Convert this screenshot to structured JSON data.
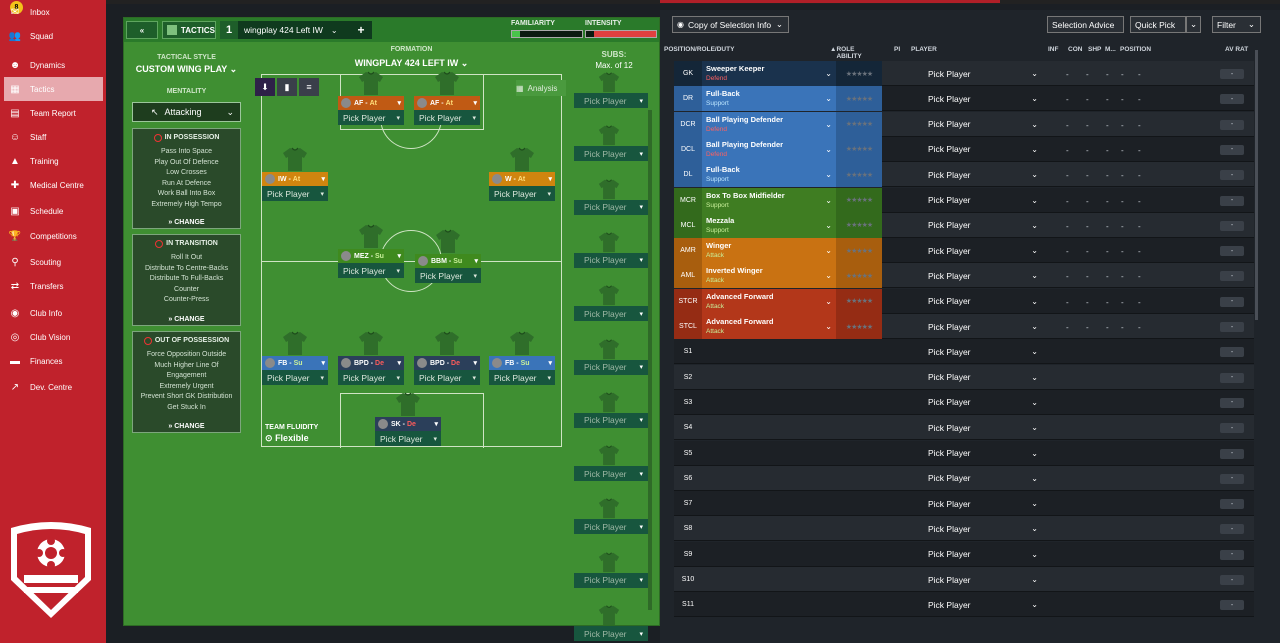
{
  "sidebar": {
    "inbox_badge": "8",
    "items": [
      {
        "label": "Inbox",
        "icon": "inbox-icon",
        "glyph": "✉"
      },
      {
        "label": "Squad",
        "icon": "squad-icon",
        "glyph": "👥"
      },
      {
        "label": "Dynamics",
        "icon": "dynamics-icon",
        "glyph": "☻"
      },
      {
        "label": "Tactics",
        "icon": "tactics-icon",
        "glyph": "▦"
      },
      {
        "label": "Team Report",
        "icon": "team-report-icon",
        "glyph": "▤"
      },
      {
        "label": "Staff",
        "icon": "staff-icon",
        "glyph": "☺"
      },
      {
        "label": "Training",
        "icon": "training-icon",
        "glyph": "▲"
      },
      {
        "label": "Medical Centre",
        "icon": "medical-icon",
        "glyph": "✚"
      },
      {
        "label": "Schedule",
        "icon": "schedule-icon",
        "glyph": "▣"
      },
      {
        "label": "Competitions",
        "icon": "trophy-icon",
        "glyph": "🏆"
      },
      {
        "label": "Scouting",
        "icon": "scouting-icon",
        "glyph": "⚲"
      },
      {
        "label": "Transfers",
        "icon": "transfers-icon",
        "glyph": "⇄"
      },
      {
        "label": "Club Info",
        "icon": "club-info-icon",
        "glyph": "◉"
      },
      {
        "label": "Club Vision",
        "icon": "club-vision-icon",
        "glyph": "◎"
      },
      {
        "label": "Finances",
        "icon": "finances-icon",
        "glyph": "▬"
      },
      {
        "label": "Dev. Centre",
        "icon": "dev-centre-icon",
        "glyph": "↗"
      }
    ]
  },
  "header": {
    "back": "«",
    "tactics_label": "TACTICS",
    "slot_number": "1",
    "formation_name": "wingplay 424  Left IW",
    "add": "+",
    "familiarity": "FAMILIARITY",
    "intensity": "INTENSITY"
  },
  "left": {
    "style_label": "TACTICAL STYLE",
    "style_value": "CUSTOM WING PLAY",
    "mentality_label": "MENTALITY",
    "mentality_value": "Attacking",
    "in_possession": {
      "title": "IN POSSESSION",
      "items": [
        "Pass Into Space",
        "Play Out Of Defence",
        "Low Crosses",
        "Run At Defence",
        "Work Ball Into Box",
        "Extremely High Tempo"
      ],
      "change": "CHANGE"
    },
    "in_transition": {
      "title": "IN TRANSITION",
      "items": [
        "Roll It Out",
        "Distribute To Centre-Backs",
        "Distribute To Full-Backs",
        "Counter",
        "Counter-Press"
      ],
      "change": "CHANGE"
    },
    "out_possession": {
      "title": "OUT OF POSSESSION",
      "items": [
        "Force Opposition Outside",
        "Much Higher Line Of",
        "Engagement",
        "Extremely Urgent",
        "Prevent Short GK Distribution",
        "Get Stuck In"
      ],
      "change": "CHANGE"
    }
  },
  "formation": {
    "label": "FORMATION",
    "name": "WINGPLAY 424  LEFT IW",
    "analysis": "Analysis",
    "team_fluidity_label": "TEAM FLUIDITY",
    "team_fluidity_value": "Flexible"
  },
  "cards": [
    {
      "role": "AF",
      "duty": "At",
      "pick": "Pick Player"
    },
    {
      "role": "AF",
      "duty": "At",
      "pick": "Pick Player"
    },
    {
      "role": "IW",
      "duty": "At",
      "pick": "Pick Player"
    },
    {
      "role": "W",
      "duty": "At",
      "pick": "Pick Player"
    },
    {
      "role": "MEZ",
      "duty": "Su",
      "pick": "Pick Player"
    },
    {
      "role": "BBM",
      "duty": "Su",
      "pick": "Pick Player"
    },
    {
      "role": "FB",
      "duty": "Su",
      "pick": "Pick Player"
    },
    {
      "role": "BPD",
      "duty": "De",
      "pick": "Pick Player"
    },
    {
      "role": "BPD",
      "duty": "De",
      "pick": "Pick Player"
    },
    {
      "role": "FB",
      "duty": "Su",
      "pick": "Pick Player"
    },
    {
      "role": "SK",
      "duty": "De",
      "pick": "Pick Player"
    }
  ],
  "subs": {
    "label": "SUBS:",
    "max": "Max. of 12",
    "pick": "Pick Player"
  },
  "right": {
    "copy_btn": "Copy of Selection Info",
    "selection_advice": "Selection Advice",
    "quick_pick": "Quick Pick",
    "filter": "Filter",
    "columns": {
      "pos": "POSITION/ROLE/DUTY",
      "role_ability": "ROLE ABILITY",
      "pi": "PI",
      "player": "PLAYER",
      "inf": "INF",
      "con": "CON",
      "shp": "SHP",
      "m": "M...",
      "position": "POSITION",
      "avrat": "AV RAT"
    },
    "rows": [
      {
        "pos": "GK",
        "role": "Sweeper Keeper",
        "duty": "Defend"
      },
      {
        "pos": "DR",
        "role": "Full-Back",
        "duty": "Support"
      },
      {
        "pos": "DCR",
        "role": "Ball Playing Defender",
        "duty": "Defend"
      },
      {
        "pos": "DCL",
        "role": "Ball Playing Defender",
        "duty": "Defend"
      },
      {
        "pos": "DL",
        "role": "Full-Back",
        "duty": "Support"
      },
      {
        "pos": "MCR",
        "role": "Box To Box Midfielder",
        "duty": "Support"
      },
      {
        "pos": "MCL",
        "role": "Mezzala",
        "duty": "Support"
      },
      {
        "pos": "AMR",
        "role": "Winger",
        "duty": "Attack"
      },
      {
        "pos": "AML",
        "role": "Inverted Winger",
        "duty": "Attack"
      },
      {
        "pos": "STCR",
        "role": "Advanced Forward",
        "duty": "Attack"
      },
      {
        "pos": "STCL",
        "role": "Advanced Forward",
        "duty": "Attack"
      },
      {
        "pos": "S1",
        "role": "",
        "duty": ""
      },
      {
        "pos": "S2",
        "role": "",
        "duty": ""
      },
      {
        "pos": "S3",
        "role": "",
        "duty": ""
      },
      {
        "pos": "S4",
        "role": "",
        "duty": ""
      },
      {
        "pos": "S5",
        "role": "",
        "duty": ""
      },
      {
        "pos": "S6",
        "role": "",
        "duty": ""
      },
      {
        "pos": "S7",
        "role": "",
        "duty": ""
      },
      {
        "pos": "S8",
        "role": "",
        "duty": ""
      },
      {
        "pos": "S9",
        "role": "",
        "duty": ""
      },
      {
        "pos": "S10",
        "role": "",
        "duty": ""
      },
      {
        "pos": "S11",
        "role": "",
        "duty": ""
      }
    ],
    "pick_player": "Pick Player",
    "stars": "★★★★★",
    "dash": "-"
  }
}
